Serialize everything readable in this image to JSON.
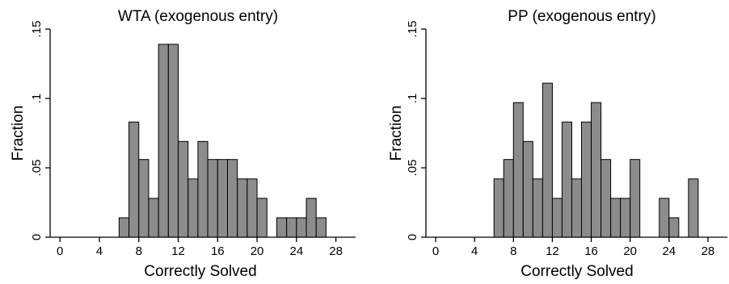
{
  "chart_data": [
    {
      "type": "bar",
      "title": "WTA (exogenous entry)",
      "xlabel": "Correctly Solved",
      "ylabel": "Fraction",
      "xlim": [
        -1,
        30
      ],
      "ylim": [
        0,
        0.15
      ],
      "xticks": [
        "0",
        "4",
        "8",
        "12",
        "16",
        "20",
        "24",
        "28"
      ],
      "yticks": [
        "0",
        ".05",
        ".1",
        ".15"
      ],
      "x": [
        6,
        7,
        8,
        9,
        10,
        11,
        12,
        13,
        14,
        15,
        16,
        17,
        18,
        19,
        20,
        22,
        23,
        24,
        25,
        26
      ],
      "values": [
        0.014,
        0.083,
        0.056,
        0.028,
        0.139,
        0.139,
        0.069,
        0.042,
        0.069,
        0.056,
        0.056,
        0.056,
        0.042,
        0.042,
        0.028,
        0.014,
        0.014,
        0.014,
        0.028,
        0.014
      ]
    },
    {
      "type": "bar",
      "title": "PP  (exogenous entry)",
      "xlabel": "Correctly Solved",
      "ylabel": "Fraction",
      "xlim": [
        -1,
        30
      ],
      "ylim": [
        0,
        0.15
      ],
      "xticks": [
        "0",
        "4",
        "8",
        "12",
        "16",
        "20",
        "24",
        "28"
      ],
      "yticks": [
        "0",
        ".05",
        ".1",
        ".15"
      ],
      "x": [
        6,
        7,
        8,
        9,
        10,
        11,
        12,
        13,
        14,
        15,
        16,
        17,
        18,
        19,
        20,
        23,
        24,
        26
      ],
      "values": [
        0.042,
        0.056,
        0.097,
        0.069,
        0.042,
        0.111,
        0.028,
        0.083,
        0.042,
        0.083,
        0.097,
        0.056,
        0.028,
        0.028,
        0.056,
        0.028,
        0.014,
        0.042
      ]
    }
  ]
}
